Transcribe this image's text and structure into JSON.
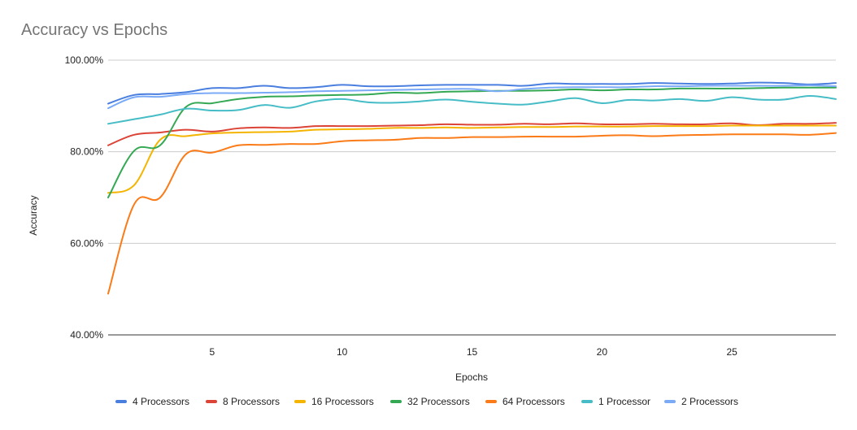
{
  "chart_data": {
    "type": "line",
    "title": "Accuracy vs Epochs",
    "xlabel": "Epochs",
    "ylabel": "Accuracy",
    "xlim": [
      1,
      29
    ],
    "ylim": [
      40,
      100
    ],
    "x_ticks": [
      5,
      10,
      15,
      20,
      25
    ],
    "y_ticks": [
      40,
      60,
      80,
      100
    ],
    "y_tick_labels": [
      "40.00%",
      "60.00%",
      "80.00%",
      "100.00%"
    ],
    "grid": "horizontal",
    "legend_position": "bottom",
    "x": [
      1,
      2,
      3,
      4,
      5,
      6,
      7,
      8,
      9,
      10,
      11,
      12,
      13,
      14,
      15,
      16,
      17,
      18,
      19,
      20,
      21,
      22,
      23,
      24,
      25,
      26,
      27,
      28,
      29
    ],
    "series": [
      {
        "name": "4 Processors",
        "color": "#4a7fdf",
        "values": [
          90.5,
          92.4,
          92.6,
          93.0,
          93.9,
          93.9,
          94.4,
          93.9,
          94.1,
          94.6,
          94.3,
          94.3,
          94.5,
          94.6,
          94.6,
          94.6,
          94.4,
          94.9,
          94.8,
          94.8,
          94.8,
          95.0,
          94.9,
          94.8,
          94.9,
          95.1,
          95.0,
          94.7,
          95.0
        ]
      },
      {
        "name": "8 Processors",
        "color": "#db4437",
        "values": [
          81.4,
          83.7,
          84.2,
          84.8,
          84.4,
          85.1,
          85.3,
          85.2,
          85.6,
          85.6,
          85.6,
          85.7,
          85.8,
          86.0,
          85.9,
          85.9,
          86.1,
          86.0,
          86.2,
          86.0,
          86.0,
          86.1,
          86.0,
          86.0,
          86.2,
          85.8,
          86.1,
          86.1,
          86.3
        ]
      },
      {
        "name": "16 Processors",
        "color": "#f4b400",
        "values": [
          71.0,
          72.7,
          82.6,
          83.4,
          84.0,
          84.2,
          84.3,
          84.4,
          84.8,
          84.9,
          85.0,
          85.2,
          85.2,
          85.3,
          85.2,
          85.3,
          85.4,
          85.4,
          85.5,
          85.5,
          85.5,
          85.6,
          85.6,
          85.6,
          85.7,
          85.7,
          85.7,
          85.7,
          85.7
        ]
      },
      {
        "name": "32 Processors",
        "color": "#34a853",
        "values": [
          70.0,
          80.2,
          81.4,
          89.8,
          90.6,
          91.5,
          92.0,
          92.1,
          92.3,
          92.4,
          92.5,
          92.9,
          92.8,
          93.1,
          93.2,
          93.3,
          93.3,
          93.4,
          93.6,
          93.4,
          93.6,
          93.6,
          93.8,
          93.8,
          93.8,
          93.9,
          94.0,
          94.0,
          94.0
        ]
      },
      {
        "name": "64 Processors",
        "color": "#fa7b17",
        "values": [
          49.0,
          68.5,
          70.0,
          79.5,
          79.8,
          81.4,
          81.5,
          81.7,
          81.7,
          82.3,
          82.5,
          82.6,
          83.0,
          83.0,
          83.2,
          83.2,
          83.3,
          83.3,
          83.3,
          83.5,
          83.6,
          83.4,
          83.6,
          83.7,
          83.8,
          83.8,
          83.8,
          83.7,
          84.1
        ]
      },
      {
        "name": "1 Processor",
        "color": "#46bdc6",
        "values": [
          86.1,
          87.1,
          88.1,
          89.4,
          89.0,
          89.1,
          90.2,
          89.6,
          91.0,
          91.5,
          90.8,
          90.7,
          91.0,
          91.4,
          90.9,
          90.5,
          90.3,
          91.0,
          91.7,
          90.6,
          91.3,
          91.2,
          91.5,
          91.1,
          91.9,
          91.4,
          91.4,
          92.2,
          91.5
        ]
      },
      {
        "name": "2 Processors",
        "color": "#7baaf7",
        "values": [
          89.5,
          91.9,
          92.0,
          92.6,
          92.8,
          92.8,
          92.9,
          93.0,
          93.2,
          93.3,
          93.4,
          93.5,
          93.6,
          93.7,
          93.7,
          93.2,
          93.7,
          94.0,
          94.1,
          94.1,
          94.1,
          94.3,
          94.3,
          94.4,
          94.4,
          94.4,
          94.4,
          94.5,
          94.3
        ]
      }
    ]
  }
}
